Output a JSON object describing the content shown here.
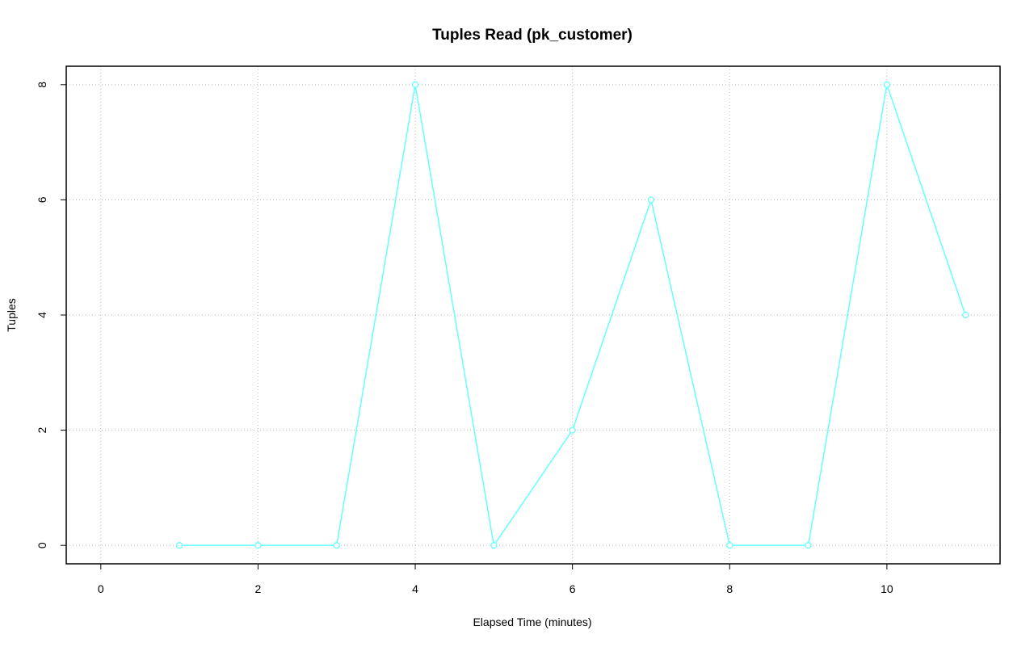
{
  "chart_data": {
    "type": "line",
    "title": "Tuples Read (pk_customer)",
    "x_label": "Elapsed Time (minutes)",
    "y_label": "Tuples",
    "x": [
      1,
      2,
      3,
      4,
      5,
      6,
      7,
      8,
      9,
      10,
      11
    ],
    "series": [
      {
        "color": "#66ffff",
        "values": [
          0,
          0,
          0,
          8,
          0,
          2,
          6,
          0,
          0,
          8,
          4
        ]
      }
    ],
    "xlim": [
      -0.44,
      11.44
    ],
    "xticks": [
      0,
      2,
      4,
      6,
      8,
      10
    ],
    "ylim": [
      -0.32,
      8.32
    ],
    "yticks": [
      0,
      2,
      4,
      6,
      8
    ],
    "grid": true
  }
}
